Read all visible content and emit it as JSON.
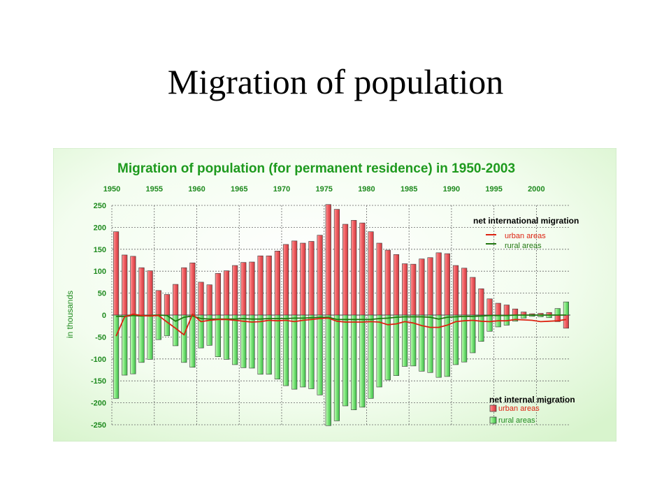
{
  "slide": {
    "title": "Migration of population"
  },
  "chart_data": {
    "type": "bar",
    "title": "Migration of population (for permanent residence) in 1950-2003",
    "ylabel": "in thousands",
    "xlabel": "",
    "ylim": [
      -250,
      250
    ],
    "ytick_labels": [
      "250",
      "200",
      "150",
      "100",
      "50",
      "0",
      "-50",
      "-100",
      "-150",
      "-200",
      "-250"
    ],
    "x_tick_labels": [
      "1950",
      "1955",
      "1960",
      "1965",
      "1970",
      "1975",
      "1980",
      "1985",
      "1990",
      "1995",
      "2000"
    ],
    "years": [
      1950,
      1951,
      1952,
      1953,
      1954,
      1955,
      1956,
      1957,
      1958,
      1959,
      1960,
      1961,
      1962,
      1963,
      1964,
      1965,
      1966,
      1967,
      1968,
      1969,
      1970,
      1971,
      1972,
      1973,
      1974,
      1975,
      1976,
      1977,
      1978,
      1979,
      1980,
      1981,
      1982,
      1983,
      1984,
      1985,
      1986,
      1987,
      1988,
      1989,
      1990,
      1991,
      1992,
      1993,
      1994,
      1995,
      1996,
      1997,
      1998,
      1999,
      2000,
      2001,
      2002,
      2003
    ],
    "legend_internal": {
      "title": "net internal migration",
      "urban": "urban areas",
      "rural": "rural areas"
    },
    "legend_international": {
      "title": "net international migration",
      "urban": "urban areas",
      "rural": "rural areas"
    },
    "colors": {
      "urban": "#f25f63",
      "rural": "#7ee67a",
      "urban_line": "#dd2211",
      "rural_line": "#227711",
      "grid": "#555555",
      "title": "#1e9a1e",
      "ticks": "#1e8a1e",
      "bg_inner": "#f6fff2",
      "bg_outer": "#d9f5cf"
    },
    "series": [
      {
        "name": "net internal migration - urban areas",
        "values": [
          190,
          137,
          134,
          108,
          101,
          56,
          47,
          70,
          108,
          119,
          75,
          69,
          95,
          101,
          113,
          120,
          121,
          135,
          135,
          146,
          161,
          169,
          164,
          168,
          182,
          252,
          241,
          207,
          216,
          210,
          190,
          164,
          148,
          138,
          117,
          116,
          128,
          131,
          142,
          140,
          113,
          107,
          86,
          60,
          37,
          27,
          23,
          14,
          7,
          3,
          4,
          6,
          -15,
          -30
        ]
      },
      {
        "name": "net internal migration - rural areas",
        "values": [
          -190,
          -137,
          -134,
          -108,
          -101,
          -56,
          -47,
          -70,
          -108,
          -119,
          -75,
          -69,
          -95,
          -101,
          -113,
          -120,
          -121,
          -135,
          -135,
          -146,
          -161,
          -169,
          -164,
          -168,
          -182,
          -252,
          -241,
          -207,
          -216,
          -210,
          -190,
          -164,
          -148,
          -138,
          -117,
          -116,
          -128,
          -131,
          -142,
          -140,
          -113,
          -107,
          -86,
          -60,
          -37,
          -27,
          -23,
          -14,
          -7,
          -3,
          -4,
          -6,
          15,
          30
        ]
      },
      {
        "name": "net international migration - urban areas",
        "values": [
          -48,
          -4,
          2,
          -1,
          -2,
          -1,
          -16,
          -30,
          -45,
          2,
          -15,
          -12,
          -10,
          -10,
          -12,
          -14,
          -16,
          -15,
          -12,
          -13,
          -12,
          -15,
          -12,
          -10,
          -8,
          -7,
          -14,
          -16,
          -16,
          -16,
          -15,
          -16,
          -22,
          -20,
          -15,
          -18,
          -24,
          -28,
          -28,
          -23,
          -15,
          -13,
          -12,
          -14,
          -15,
          -13,
          -13,
          -10,
          -11,
          -12,
          -15,
          -14,
          -13,
          -10
        ]
      },
      {
        "name": "net international migration - rural areas",
        "values": [
          -3,
          -3,
          -1,
          -2,
          -1,
          0,
          -1,
          -14,
          -5,
          -2,
          -8,
          -9,
          -9,
          -9,
          -9,
          -8,
          -9,
          -9,
          -8,
          -8,
          -8,
          -7,
          -7,
          -6,
          -5,
          -5,
          -10,
          -10,
          -10,
          -10,
          -10,
          -8,
          -7,
          -5,
          -4,
          -4,
          -4,
          -5,
          -9,
          -5,
          -4,
          -3,
          -3,
          -2,
          -1,
          -1,
          -1,
          0,
          0,
          0,
          0,
          0,
          0,
          0
        ]
      }
    ]
  }
}
